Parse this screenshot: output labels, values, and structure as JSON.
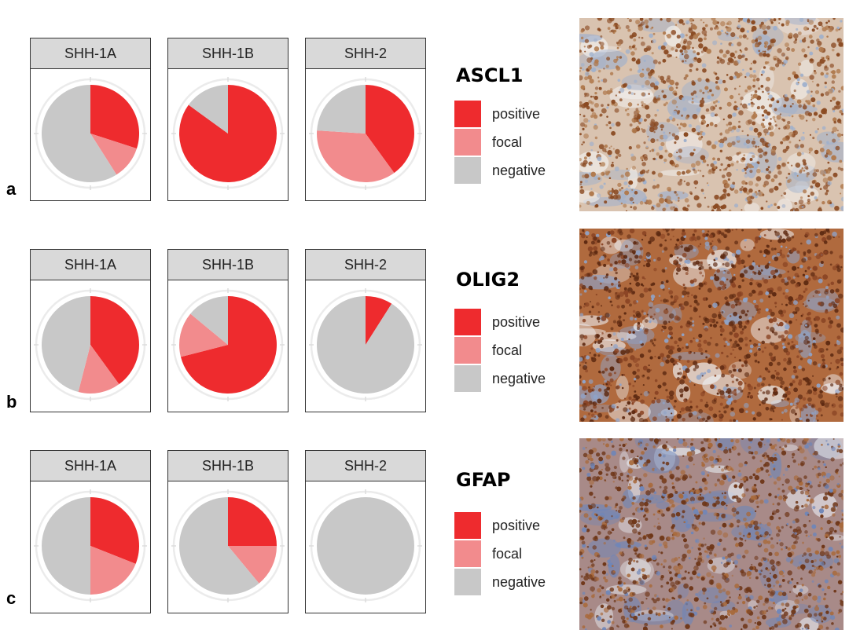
{
  "colors": {
    "positive": "#ee2b2e",
    "focal": "#f28b8d",
    "negative": "#c8c8c8",
    "ring": "#ebebeb"
  },
  "legend": {
    "positive": "positive",
    "focal": "focal",
    "negative": "negative"
  },
  "chart_data": [
    {
      "type": "pie",
      "row_label": "a",
      "title": "ASCL1",
      "categories": [
        "positive",
        "focal",
        "negative"
      ],
      "facets": [
        {
          "name": "SHH-1A",
          "values": [
            0.3,
            0.11,
            0.59
          ]
        },
        {
          "name": "SHH-1B",
          "values": [
            0.85,
            0.0,
            0.15
          ]
        },
        {
          "name": "SHH-2",
          "values": [
            0.4,
            0.36,
            0.24
          ]
        }
      ]
    },
    {
      "type": "pie",
      "row_label": "b",
      "title": "OLIG2",
      "categories": [
        "positive",
        "focal",
        "negative"
      ],
      "facets": [
        {
          "name": "SHH-1A",
          "values": [
            0.4,
            0.14,
            0.46
          ]
        },
        {
          "name": "SHH-1B",
          "values": [
            0.71,
            0.15,
            0.14
          ]
        },
        {
          "name": "SHH-2",
          "values": [
            0.09,
            0.0,
            0.91
          ]
        }
      ]
    },
    {
      "type": "pie",
      "row_label": "c",
      "title": "GFAP",
      "categories": [
        "positive",
        "focal",
        "negative"
      ],
      "facets": [
        {
          "name": "SHH-1A",
          "values": [
            0.31,
            0.19,
            0.5
          ]
        },
        {
          "name": "SHH-1B",
          "values": [
            0.25,
            0.14,
            0.61
          ]
        },
        {
          "name": "SHH-2",
          "values": [
            0.0,
            0.0,
            1.0
          ]
        }
      ]
    }
  ],
  "micrographs": [
    {
      "stain": "ASCL1",
      "palette": {
        "base": "#d9c3b0",
        "dark": "#8a4a22",
        "mid": "#b07a4e",
        "blue": "#9fb0cc",
        "white": "#f2f0ee"
      }
    },
    {
      "stain": "OLIG2",
      "palette": {
        "base": "#b06a3e",
        "dark": "#5e2a12",
        "mid": "#8a4424",
        "blue": "#8fa3c8",
        "white": "#eef0f4"
      }
    },
    {
      "stain": "GFAP",
      "palette": {
        "base": "#a88a88",
        "dark": "#6e3618",
        "mid": "#a86a3c",
        "blue": "#6f86b8",
        "white": "#e8ecf2"
      }
    }
  ]
}
